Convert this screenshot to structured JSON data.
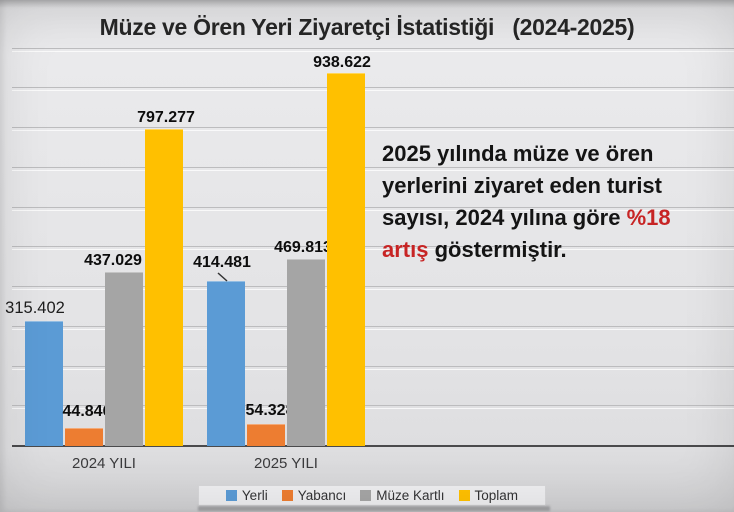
{
  "chart_data": {
    "type": "bar",
    "title": "Müze ve Ören Yeri Ziyaretçi İstatistiği   (2024-2025)",
    "categories": [
      "2024 YILI",
      "2025 YILI"
    ],
    "series": [
      {
        "name": "Yerli",
        "color": "#5B9BD5",
        "values": [
          315402,
          414481
        ],
        "labels": [
          "315.402",
          "414.481"
        ],
        "label_dx": [
          -9,
          -4
        ],
        "label_dy": [
          -2,
          -7
        ],
        "label_bold": [
          false,
          true
        ],
        "callout": [
          false,
          true
        ]
      },
      {
        "name": "Yabancı",
        "color": "#ED7D31",
        "values": [
          44846,
          54328
        ],
        "labels": [
          "44.846",
          "54.328"
        ],
        "label_dx": [
          3,
          4
        ],
        "label_dy": [
          -5,
          -2
        ],
        "label_bold": [
          true,
          true
        ],
        "callout": [
          false,
          false
        ]
      },
      {
        "name": "Müze Kartlı",
        "color": "#A5A5A5",
        "values": [
          437029,
          469813
        ],
        "labels": [
          "437.029",
          "469.813"
        ],
        "label_dx": [
          -11,
          -3
        ],
        "label_dy": [
          0,
          0
        ],
        "label_bold": [
          true,
          true
        ],
        "callout": [
          false,
          false
        ]
      },
      {
        "name": "Toplam",
        "color": "#FFC000",
        "values": [
          797277,
          938622
        ],
        "labels": [
          "797.277",
          "938.622"
        ],
        "label_dx": [
          2,
          -4
        ],
        "label_dy": [
          0,
          1
        ],
        "label_bold": [
          true,
          true
        ],
        "callout": [
          false,
          false
        ]
      }
    ],
    "ylim": [
      0,
      1000000
    ],
    "gridline_interval": 100000,
    "grid": true,
    "legend_position": "bottom",
    "xlabel": "",
    "ylabel": ""
  },
  "annotation": {
    "line1": "2025 yılında müze ve ören",
    "line2": "yerlerini ziyaret eden turist",
    "line3_prefix": "sayısı, 2024 yılına göre ",
    "line3_highlight": "%18",
    "line4_highlight": "artış",
    "line4_suffix": " göstermiştir.",
    "highlight_color": "#C72424"
  },
  "colors": {
    "background": "#E4E4E6",
    "gridline": "#BCBCBE",
    "axis": "#4A4A4C",
    "title_text": "#262626",
    "label_text": "#0D0D0D"
  }
}
